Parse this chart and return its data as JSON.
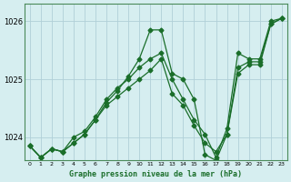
{
  "bg_color": "#d6eef0",
  "grid_color": "#b0d0d8",
  "line_color": "#1a6e2a",
  "title": "Graphe pression niveau de la mer (hPa)",
  "xlabel_ticks": [
    0,
    1,
    2,
    3,
    4,
    5,
    6,
    7,
    8,
    9,
    10,
    11,
    12,
    13,
    14,
    15,
    16,
    17,
    18,
    19,
    20,
    21,
    22,
    23
  ],
  "ylim": [
    1023.6,
    1026.3
  ],
  "yticks": [
    1024,
    1025,
    1026
  ],
  "series": [
    [
      1023.85,
      1023.65,
      1023.8,
      1023.75,
      1023.9,
      1024.05,
      1024.3,
      1024.55,
      1024.7,
      1024.85,
      1025.0,
      1025.15,
      1025.35,
      1024.75,
      1024.55,
      1024.2,
      1023.9,
      1023.75,
      1024.05,
      1025.1,
      1025.25,
      1025.25,
      1025.95,
      1026.05
    ],
    [
      1023.85,
      1023.65,
      1023.8,
      1023.75,
      1023.9,
      1024.05,
      1024.3,
      1024.6,
      1024.8,
      1025.05,
      1025.35,
      1025.85,
      1025.85,
      1025.1,
      1025.0,
      1024.65,
      1023.7,
      1023.6,
      1024.05,
      1025.2,
      1025.3,
      1025.3,
      1025.95,
      1026.05
    ],
    [
      1023.85,
      1023.65,
      1023.8,
      1023.75,
      1024.0,
      1024.1,
      1024.35,
      1024.65,
      1024.85,
      1025.0,
      1025.2,
      1025.35,
      1025.45,
      1025.0,
      1024.65,
      1024.3,
      1024.05,
      1023.65,
      1024.15,
      1025.45,
      1025.35,
      1025.35,
      1026.0,
      1026.05
    ]
  ]
}
